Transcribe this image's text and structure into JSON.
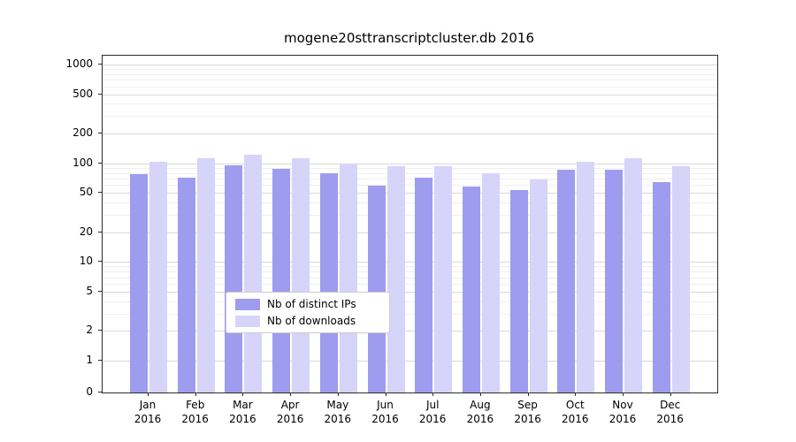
{
  "chart_data": {
    "type": "bar",
    "title": "mogene20sttranscriptcluster.db 2016",
    "categories": [
      "Jan",
      "Feb",
      "Mar",
      "Apr",
      "May",
      "Jun",
      "Jul",
      "Aug",
      "Sep",
      "Oct",
      "Nov",
      "Dec"
    ],
    "year": "2016",
    "series": [
      {
        "name": "Nb of distinct IPs",
        "color": "#9e9cee",
        "values": [
          78,
          71,
          96,
          88,
          80,
          59,
          71,
          58,
          54,
          86,
          86,
          65
        ]
      },
      {
        "name": "Nb of downloads",
        "color": "#d6d4f8",
        "values": [
          103,
          112,
          123,
          113,
          100,
          94,
          93,
          80,
          68,
          103,
          112,
          93
        ]
      }
    ],
    "yscale": "symlog",
    "yticks": [
      0,
      1,
      2,
      5,
      10,
      20,
      50,
      100,
      200,
      500,
      1000
    ],
    "ylim": [
      0,
      1200
    ],
    "grid": "horizontal",
    "legend_position": "bottom-center-inside"
  }
}
